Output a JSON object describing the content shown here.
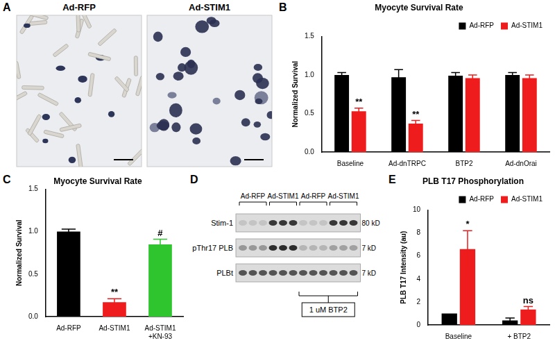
{
  "panels": {
    "A": {
      "label": "A",
      "images": [
        {
          "title": "Ad-RFP"
        },
        {
          "title": "Ad-STIM1"
        }
      ]
    },
    "D": {
      "label": "D",
      "lane_groups": [
        "Ad-RFP",
        "Ad-STIM1",
        "Ad-RFP",
        "Ad-STIM1"
      ],
      "lanes_per_group": 3,
      "rows": [
        {
          "name": "Stim-1",
          "size": "80 kD"
        },
        {
          "name": "pThr17 PLB",
          "size": "7 kD"
        },
        {
          "name": "PLBt",
          "size": "7 kD"
        }
      ],
      "treatment": "1 uM BTP2"
    }
  },
  "chart_data": [
    {
      "panel": "B",
      "type": "bar",
      "title": "Myocyte Survival Rate",
      "ylabel": "Normalized Survival",
      "categories": [
        "Baseline",
        "Ad-dnTRPC",
        "BTP2",
        "Ad-dnOrai"
      ],
      "series": [
        {
          "name": "Ad-RFP",
          "color": "#000000",
          "values": [
            1.0,
            0.97,
            0.99,
            1.0
          ],
          "errors": [
            0.03,
            0.1,
            0.04,
            0.03
          ],
          "annotations": [
            null,
            null,
            null,
            null
          ]
        },
        {
          "name": "Ad-STIM1",
          "color": "#ee1c1c",
          "values": [
            0.53,
            0.37,
            0.96,
            0.96
          ],
          "errors": [
            0.04,
            0.04,
            0.04,
            0.04
          ],
          "annotations": [
            "**",
            "**",
            null,
            null
          ]
        }
      ],
      "ylim": [
        0,
        1.5
      ],
      "yticks": [
        {
          "value": 0,
          "label": "0.0"
        },
        {
          "value": 0.5,
          "label": "0.5"
        },
        {
          "value": 1,
          "label": "1.0"
        },
        {
          "value": 1.5,
          "label": "1.5"
        }
      ],
      "grid": false,
      "legend": "top right"
    },
    {
      "panel": "C",
      "type": "bar",
      "title": "Myocyte Survival Rate",
      "ylabel": "Normalized Survival",
      "categories": [
        "Ad-RFP",
        "Ad-STIM1",
        [
          "Ad-STIM1",
          "+KN-93"
        ]
      ],
      "values": [
        1.0,
        0.17,
        0.85
      ],
      "errors": [
        0.03,
        0.04,
        0.06
      ],
      "colors": [
        "#000000",
        "#ee1c1c",
        "#2fc52f"
      ],
      "annotations": [
        null,
        "**",
        "#"
      ],
      "ylim": [
        0,
        1.5
      ],
      "yticks": [
        {
          "value": 0,
          "label": "0.0"
        },
        {
          "value": 0.5,
          "label": "0.5"
        },
        {
          "value": 1,
          "label": "1.0"
        },
        {
          "value": 1.5,
          "label": "1.5"
        }
      ],
      "grid": false
    },
    {
      "panel": "E",
      "type": "bar",
      "title": "PLB T17 Phosphorylation",
      "ylabel": "PLB T17 Intensity (au)",
      "categories": [
        "Baseline",
        "+ BTP2"
      ],
      "series": [
        {
          "name": "Ad-RFP",
          "color": "#000000",
          "values": [
            1.0,
            0.4
          ],
          "errors": [
            0,
            0.2
          ],
          "annotations": [
            null,
            null
          ]
        },
        {
          "name": "Ad-STIM1",
          "color": "#ee1c1c",
          "values": [
            6.6,
            1.35
          ],
          "errors": [
            1.6,
            0.25
          ],
          "annotations": [
            "*",
            "ns"
          ]
        }
      ],
      "ylim": [
        0,
        10
      ],
      "yticks": [
        0,
        2,
        4,
        6,
        8,
        10
      ],
      "grid": false,
      "legend": "top right"
    }
  ]
}
